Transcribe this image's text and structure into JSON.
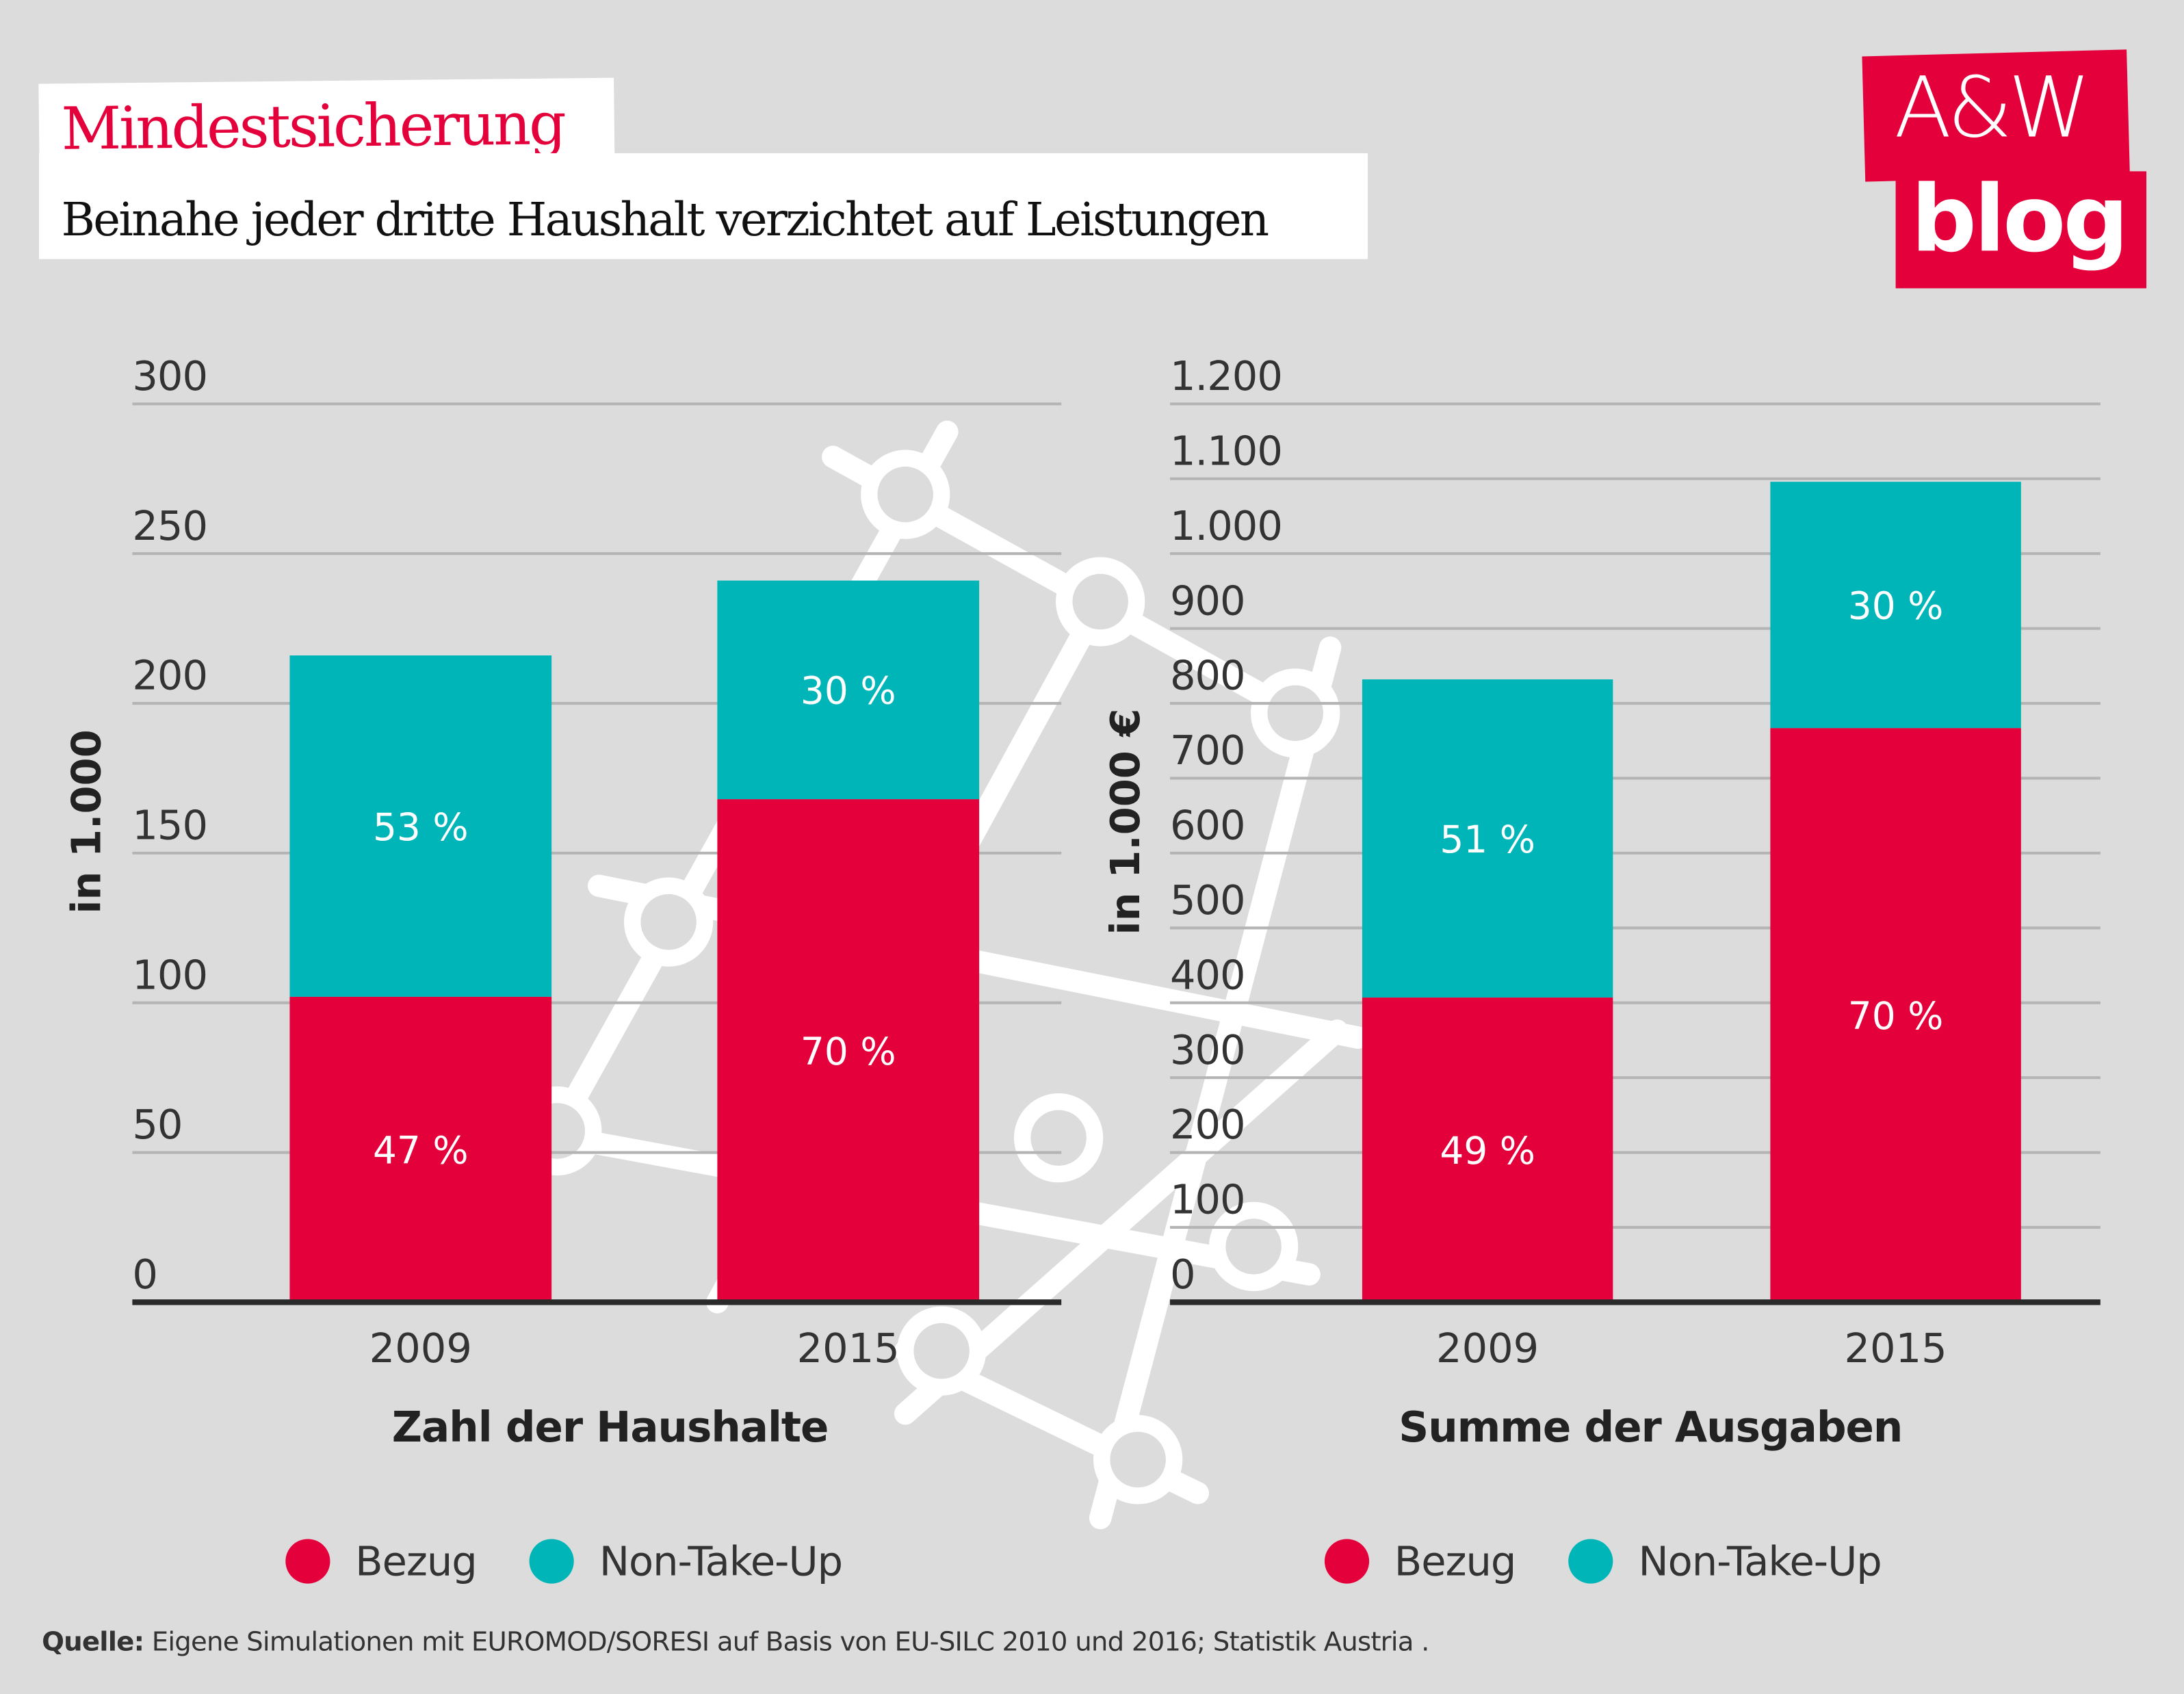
{
  "header": {
    "kicker": "Mindestsicherung",
    "headline": "Beinahe jeder dritte Haushalt verzichtet auf Leistungen",
    "logo_text": [
      "A&W",
      "blog"
    ]
  },
  "colors": {
    "bezug": "#e4003a",
    "non_take_up": "#00b5b8",
    "background": "#dcdcdc",
    "text": "#333333",
    "grid": "#b4b4b4"
  },
  "legend": {
    "items": [
      {
        "label": "Bezug",
        "color": "#e4003a"
      },
      {
        "label": "Non-Take-Up",
        "color": "#00b5b8"
      }
    ]
  },
  "source": {
    "label": "Quelle:",
    "text": " Eigene Simulationen mit EUROMOD/SORESI auf Basis von EU-SILC 2010 und 2016; Statistik Austria ."
  },
  "chart_data": [
    {
      "type": "bar",
      "stacked": true,
      "title": "Zahl der Haushalte",
      "ylabel": "in 1.000",
      "xlabel": "Zahl der Haushalte",
      "categories": [
        "2009",
        "2015"
      ],
      "ylim": [
        0,
        300
      ],
      "yticks": [
        0,
        50,
        100,
        150,
        200,
        250,
        300
      ],
      "ytick_labels": [
        "0",
        "50",
        "100",
        "150",
        "200",
        "250",
        "300"
      ],
      "grid": true,
      "legend_position": "bottom",
      "series": [
        {
          "name": "Bezug",
          "values": [
            102,
            168
          ],
          "labels": [
            "47 %",
            "70 %"
          ]
        },
        {
          "name": "Non-Take-Up",
          "values": [
            114,
            73
          ],
          "labels": [
            "53 %",
            "30 %"
          ]
        }
      ]
    },
    {
      "type": "bar",
      "stacked": true,
      "title": "Summe der Ausgaben",
      "ylabel": "in 1.000 €",
      "xlabel": "Summe der Ausgaben",
      "categories": [
        "2009",
        "2015"
      ],
      "ylim": [
        0,
        1200
      ],
      "yticks": [
        0,
        100,
        200,
        300,
        400,
        500,
        600,
        700,
        800,
        900,
        1000,
        1100,
        1200
      ],
      "ytick_labels": [
        "0",
        "100",
        "200",
        "300",
        "400",
        "500",
        "600",
        "700",
        "800",
        "900",
        "1.000",
        "1.100",
        "1.200"
      ],
      "grid": true,
      "legend_position": "bottom",
      "series": [
        {
          "name": "Bezug",
          "values": [
            407,
            767
          ],
          "labels": [
            "49 %",
            "70 %"
          ]
        },
        {
          "name": "Non-Take-Up",
          "values": [
            425,
            329
          ],
          "labels": [
            "51 %",
            "30 %"
          ]
        }
      ]
    }
  ]
}
